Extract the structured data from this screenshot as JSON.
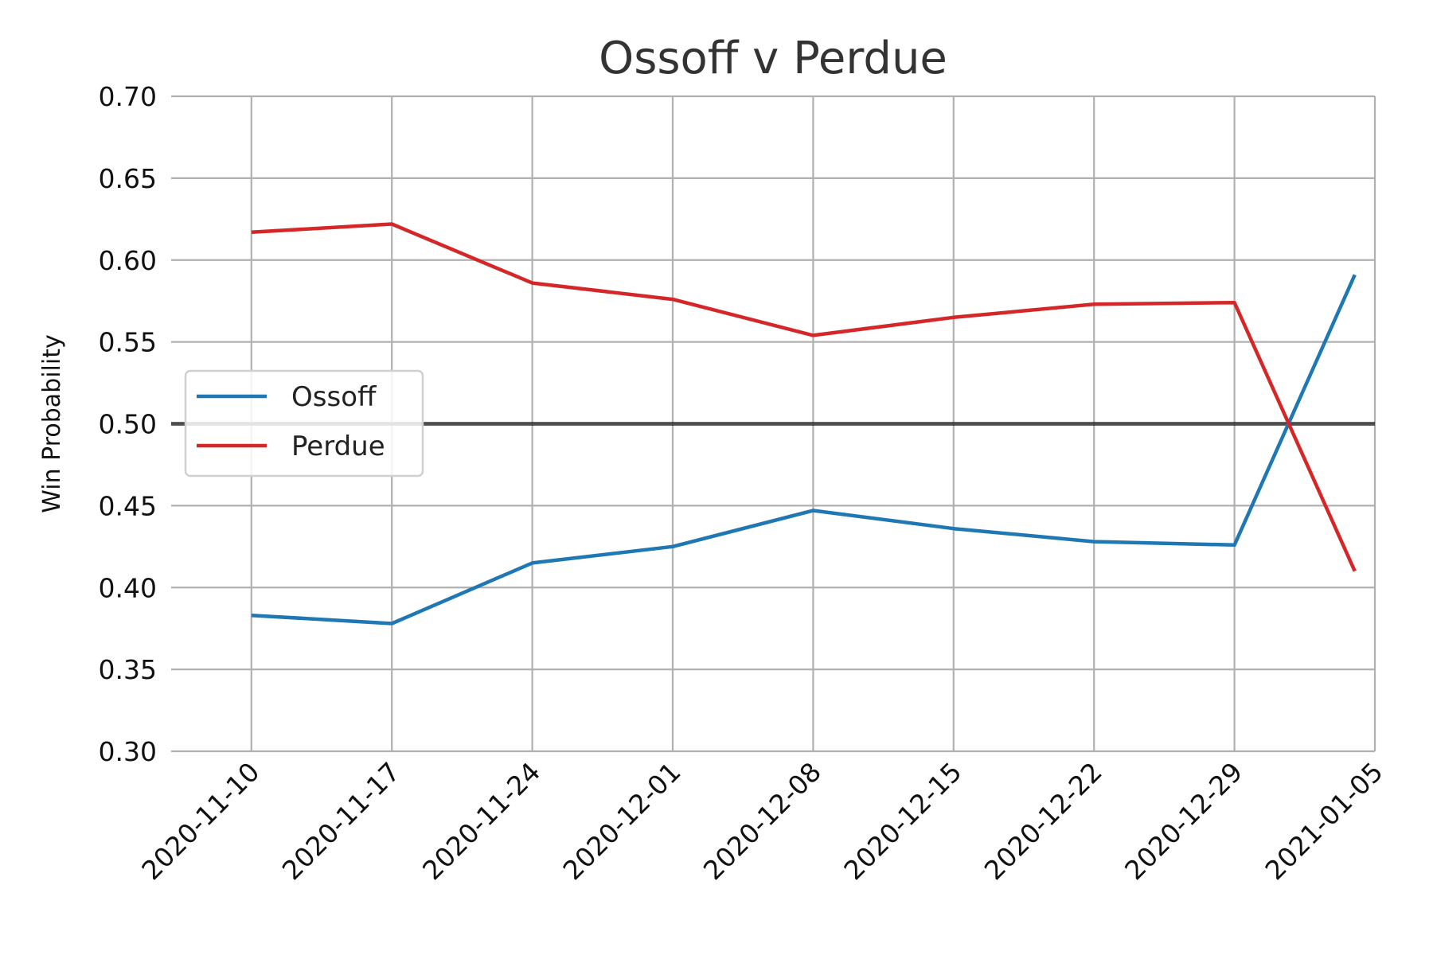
{
  "chart_data": {
    "type": "line",
    "title": "Ossoff v Perdue",
    "xlabel": "",
    "ylabel": "Win Probability",
    "x": [
      "2020-11-10",
      "2020-11-17",
      "2020-11-24",
      "2020-12-01",
      "2020-12-08",
      "2020-12-15",
      "2020-12-22",
      "2020-12-29",
      "2021-01-05"
    ],
    "series": [
      {
        "name": "Ossoff",
        "color": "#1f77b4",
        "points": [
          {
            "x": "2020-11-10",
            "y": 0.383
          },
          {
            "x": "2020-11-17",
            "y": 0.378
          },
          {
            "x": "2020-11-24",
            "y": 0.415
          },
          {
            "x": "2020-12-01",
            "y": 0.425
          },
          {
            "x": "2020-12-08",
            "y": 0.447
          },
          {
            "x": "2020-12-15",
            "y": 0.436
          },
          {
            "x": "2020-12-22",
            "y": 0.428
          },
          {
            "x": "2020-12-29",
            "y": 0.426
          },
          {
            "x": "2021-01-04",
            "y": 0.591
          }
        ]
      },
      {
        "name": "Perdue",
        "color": "#d62728",
        "points": [
          {
            "x": "2020-11-10",
            "y": 0.617
          },
          {
            "x": "2020-11-17",
            "y": 0.622
          },
          {
            "x": "2020-11-24",
            "y": 0.586
          },
          {
            "x": "2020-12-01",
            "y": 0.576
          },
          {
            "x": "2020-12-08",
            "y": 0.554
          },
          {
            "x": "2020-12-15",
            "y": 0.565
          },
          {
            "x": "2020-12-22",
            "y": 0.573
          },
          {
            "x": "2020-12-29",
            "y": 0.574
          },
          {
            "x": "2021-01-04",
            "y": 0.41
          }
        ]
      }
    ],
    "reference_line": {
      "y": 0.5,
      "color": "#000000"
    },
    "yticks": [
      "0.30",
      "0.35",
      "0.40",
      "0.45",
      "0.50",
      "0.55",
      "0.60",
      "0.65",
      "0.70"
    ],
    "ylim": [
      0.3,
      0.7
    ],
    "xlim": [
      "2020-11-06",
      "2021-01-05"
    ],
    "grid": true,
    "legend": {
      "placement": "center-left",
      "entries": [
        "Ossoff",
        "Perdue"
      ]
    }
  }
}
